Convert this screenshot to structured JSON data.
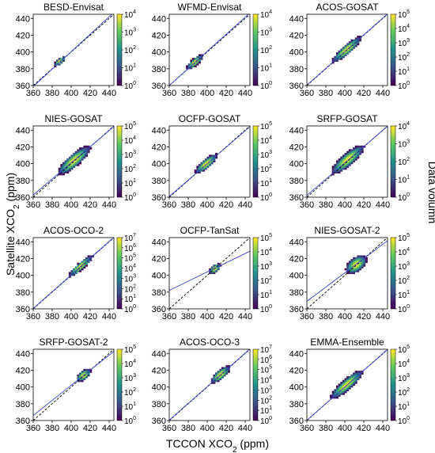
{
  "figure": {
    "xlabel": "TCCON XCO",
    "xlabel_sub": "2",
    "xlabel_unit": " (ppm)",
    "ylabel": "Satellite  XCO",
    "ylabel_sub": "2",
    "ylabel_unit": " (ppm)",
    "colorbar_label": "Data volumn",
    "colormap": [
      "#440154",
      "#3b528b",
      "#21918c",
      "#5ec962",
      "#fde725"
    ]
  },
  "chart_data": [
    {
      "type": "heatmap",
      "title": "BESD-Envisat",
      "xlim": [
        360,
        445
      ],
      "ylim": [
        360,
        445
      ],
      "xticks": [
        360,
        380,
        400,
        420,
        440
      ],
      "yticks": [
        360,
        380,
        400,
        420,
        440
      ],
      "cbar_max_exp": 4,
      "ticks_offset": 0,
      "cloud": {
        "center": [
          388,
          389
        ],
        "half_along": 8,
        "half_across": 3
      },
      "fit_line": {
        "slope": 1.04,
        "intercept": -15.6
      },
      "one_to_one": true
    },
    {
      "type": "heatmap",
      "title": "WFMD-Envisat",
      "xlim": [
        360,
        445
      ],
      "ylim": [
        360,
        445
      ],
      "xticks": [
        360,
        380,
        400,
        420,
        440
      ],
      "yticks": [
        360,
        380,
        400,
        420,
        440
      ],
      "cbar_max_exp": 4,
      "ticks_offset": 0,
      "cloud": {
        "center": [
          387,
          388
        ],
        "half_along": 12,
        "half_across": 4
      },
      "fit_line": {
        "slope": 1.02,
        "intercept": -7.2
      },
      "one_to_one": true
    },
    {
      "type": "heatmap",
      "title": "ACOS-GOSAT",
      "xlim": [
        360,
        445
      ],
      "ylim": [
        360,
        445
      ],
      "xticks": [
        360,
        380,
        400,
        420,
        440
      ],
      "yticks": [
        360,
        380,
        400,
        420,
        440
      ],
      "cbar_max_exp": 5,
      "ticks_offset": 0,
      "cloud": {
        "center": [
          402,
          403
        ],
        "half_along": 22,
        "half_across": 5
      },
      "fit_line": {
        "slope": 1.0,
        "intercept": 0.5
      },
      "one_to_one": true
    },
    {
      "type": "heatmap",
      "title": "NIES-GOSAT",
      "xlim": [
        360,
        445
      ],
      "ylim": [
        360,
        445
      ],
      "xticks": [
        360,
        380,
        400,
        420,
        440
      ],
      "yticks": [
        360,
        380,
        400,
        420,
        440
      ],
      "cbar_max_exp": 5,
      "ticks_offset": 0,
      "cloud": {
        "center": [
          403,
          404
        ],
        "half_along": 24,
        "half_across": 7
      },
      "fit_line": {
        "slope": 0.96,
        "intercept": 17
      },
      "one_to_one": true
    },
    {
      "type": "heatmap",
      "title": "OCFP-GOSAT",
      "xlim": [
        360,
        445
      ],
      "ylim": [
        360,
        445
      ],
      "xticks": [
        360,
        380,
        400,
        420,
        440
      ],
      "yticks": [
        360,
        380,
        400,
        420,
        440
      ],
      "cbar_max_exp": 5,
      "ticks_offset": 0,
      "cloud": {
        "center": [
          399,
          400
        ],
        "half_along": 16,
        "half_across": 5
      },
      "fit_line": {
        "slope": 0.98,
        "intercept": 8
      },
      "one_to_one": true
    },
    {
      "type": "heatmap",
      "title": "SRFP-GOSAT",
      "xlim": [
        360,
        445
      ],
      "ylim": [
        360,
        445
      ],
      "xticks": [
        360,
        380,
        400,
        420,
        440
      ],
      "yticks": [
        360,
        380,
        400,
        420,
        440
      ],
      "cbar_max_exp": 4,
      "ticks_offset": 0,
      "cloud": {
        "center": [
          403,
          405
        ],
        "half_along": 24,
        "half_across": 7
      },
      "fit_line": {
        "slope": 0.97,
        "intercept": 13
      },
      "one_to_one": true
    },
    {
      "type": "heatmap",
      "title": "ACOS-OCO-2",
      "xlim": [
        360,
        445
      ],
      "ylim": [
        360,
        445
      ],
      "xticks": [
        360,
        380,
        400,
        420,
        440
      ],
      "yticks": [
        360,
        380,
        400,
        420,
        440
      ],
      "cbar_max_exp": 7,
      "ticks_offset": 1,
      "cloud": {
        "center": [
          410,
          411
        ],
        "half_along": 18,
        "half_across": 4
      },
      "fit_line": {
        "slope": 1.0,
        "intercept": 0.5
      },
      "one_to_one": true
    },
    {
      "type": "heatmap",
      "title": "OCFP-TanSat",
      "xlim": [
        360,
        445
      ],
      "ylim": [
        360,
        445
      ],
      "xticks": [
        360,
        380,
        400,
        420,
        440
      ],
      "yticks": [
        360,
        380,
        400,
        420,
        440
      ],
      "cbar_max_exp": 5,
      "ticks_offset": 0,
      "cloud": {
        "center": [
          408,
          408
        ],
        "half_along": 8,
        "half_across": 4
      },
      "fit_line": {
        "slope": 0.55,
        "intercept": 184
      },
      "one_to_one": true
    },
    {
      "type": "heatmap",
      "title": "NIES-GOSAT-2",
      "xlim": [
        360,
        445
      ],
      "ylim": [
        360,
        445
      ],
      "xticks": [
        360,
        380,
        400,
        420,
        440
      ],
      "yticks": [
        360,
        380,
        400,
        420,
        440
      ],
      "cbar_max_exp": 5,
      "ticks_offset": 0,
      "cloud": {
        "center": [
          412,
          413
        ],
        "half_along": 14,
        "half_across": 8
      },
      "fit_line": {
        "slope": 0.85,
        "intercept": 63
      },
      "one_to_one": true
    },
    {
      "type": "heatmap",
      "title": "SRFP-GOSAT-2",
      "xlim": [
        360,
        445
      ],
      "ylim": [
        360,
        445
      ],
      "xticks": [
        360,
        380,
        400,
        420,
        440
      ],
      "yticks": [
        360,
        380,
        400,
        420,
        440
      ],
      "cbar_max_exp": 5,
      "ticks_offset": 0,
      "cloud": {
        "center": [
          413,
          414
        ],
        "half_along": 10,
        "half_across": 5
      },
      "fit_line": {
        "slope": 0.9,
        "intercept": 42
      },
      "one_to_one": true
    },
    {
      "type": "heatmap",
      "title": "ACOS-OCO-3",
      "xlim": [
        360,
        445
      ],
      "ylim": [
        360,
        445
      ],
      "xticks": [
        360,
        380,
        400,
        420,
        440
      ],
      "yticks": [
        360,
        380,
        400,
        420,
        440
      ],
      "cbar_max_exp": 7,
      "ticks_offset": 1,
      "cloud": {
        "center": [
          414,
          415
        ],
        "half_along": 14,
        "half_across": 5
      },
      "fit_line": {
        "slope": 1.0,
        "intercept": 0.5
      },
      "one_to_one": true
    },
    {
      "type": "heatmap",
      "title": "EMMA-Ensemble",
      "xlim": [
        360,
        445
      ],
      "ylim": [
        360,
        445
      ],
      "xticks": [
        360,
        380,
        400,
        420,
        440
      ],
      "yticks": [
        360,
        380,
        400,
        420,
        440
      ],
      "cbar_max_exp": 5,
      "ticks_offset": 0,
      "cloud": {
        "center": [
          402,
          403
        ],
        "half_along": 24,
        "half_across": 6
      },
      "fit_line": {
        "slope": 0.99,
        "intercept": 4
      },
      "one_to_one": true
    }
  ]
}
